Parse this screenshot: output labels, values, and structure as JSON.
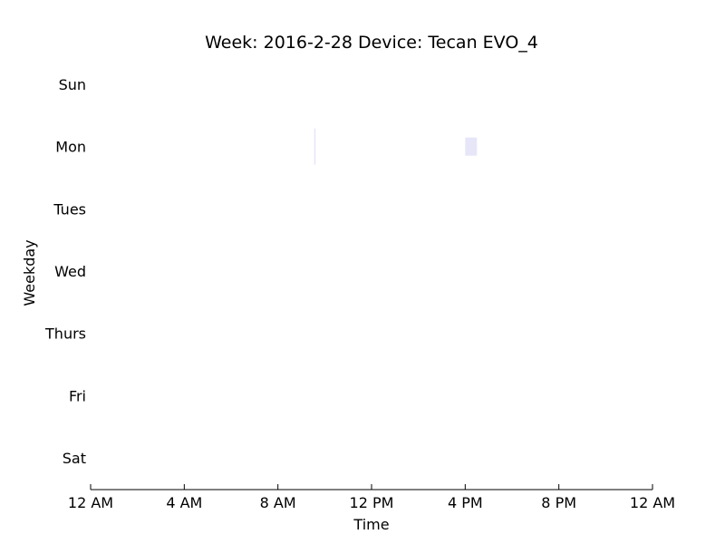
{
  "chart_data": {
    "type": "bar",
    "title": "Week: 2016-2-28  Device: Tecan EVO_4",
    "xlabel": "Time",
    "ylabel": "Weekday",
    "categories": [
      "Sun",
      "Mon",
      "Tues",
      "Wed",
      "Thurs",
      "Fri",
      "Sat"
    ],
    "x_ticks": [
      "12 AM",
      "4 AM",
      "8 AM",
      "12 PM",
      "4 PM",
      "8 PM",
      "12 AM"
    ],
    "x_tick_hours": [
      0,
      4,
      8,
      12,
      16,
      20,
      24
    ],
    "xlim_hours": [
      0,
      24
    ],
    "grid": false,
    "legend": "none",
    "series": [
      {
        "color": "#e6e6f8",
        "bars": [
          {
            "day": "Mon",
            "start_hour": 9.55,
            "end_hour": 9.6
          },
          {
            "day": "Mon",
            "start_hour": 16.0,
            "end_hour": 16.5
          }
        ]
      }
    ]
  }
}
